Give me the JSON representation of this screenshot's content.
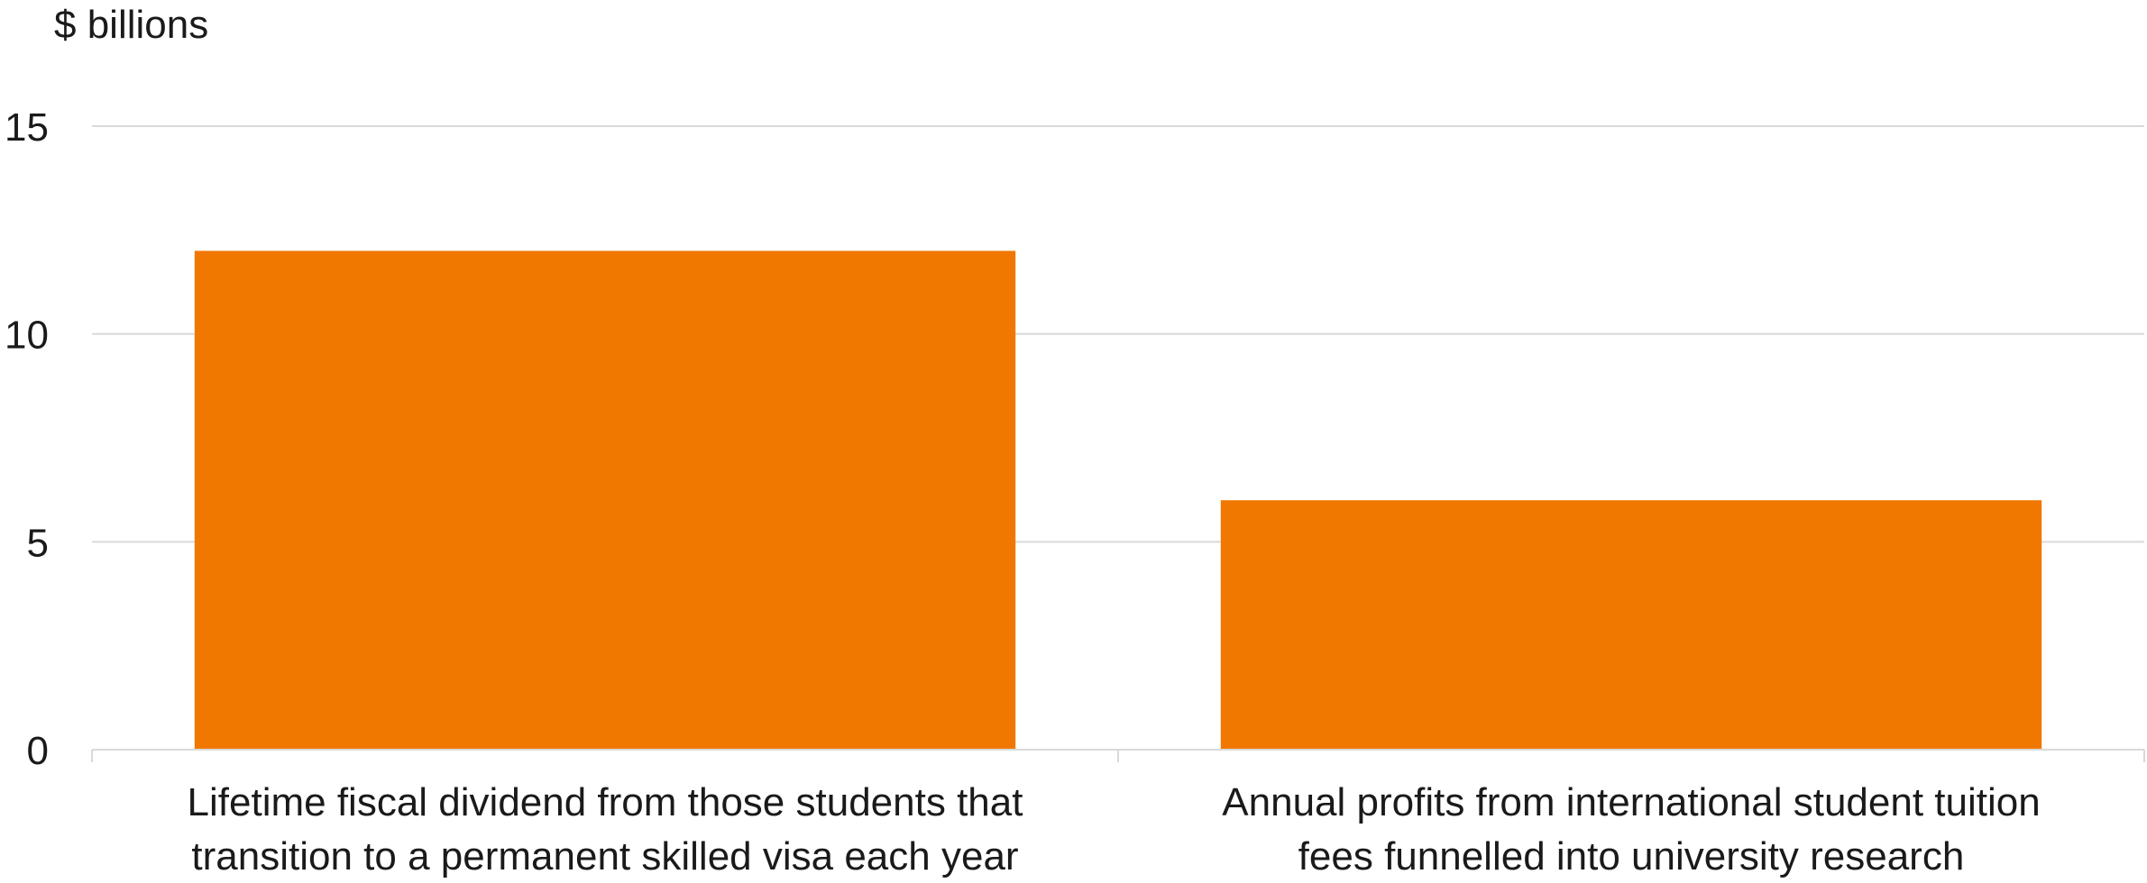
{
  "chart_data": {
    "type": "bar",
    "ylabel": "$ billions",
    "categories": [
      [
        "Lifetime fiscal dividend from those students that",
        "transition to a permanent skilled visa each year"
      ],
      [
        "Annual profits from international student tuition",
        "fees funnelled into university research"
      ]
    ],
    "values": [
      12,
      6
    ],
    "ylim": [
      0,
      15
    ],
    "yticks": [
      0,
      5,
      10,
      15
    ],
    "grid": true,
    "bar_color": "#F07800",
    "grid_color": "#d9d9d9"
  }
}
